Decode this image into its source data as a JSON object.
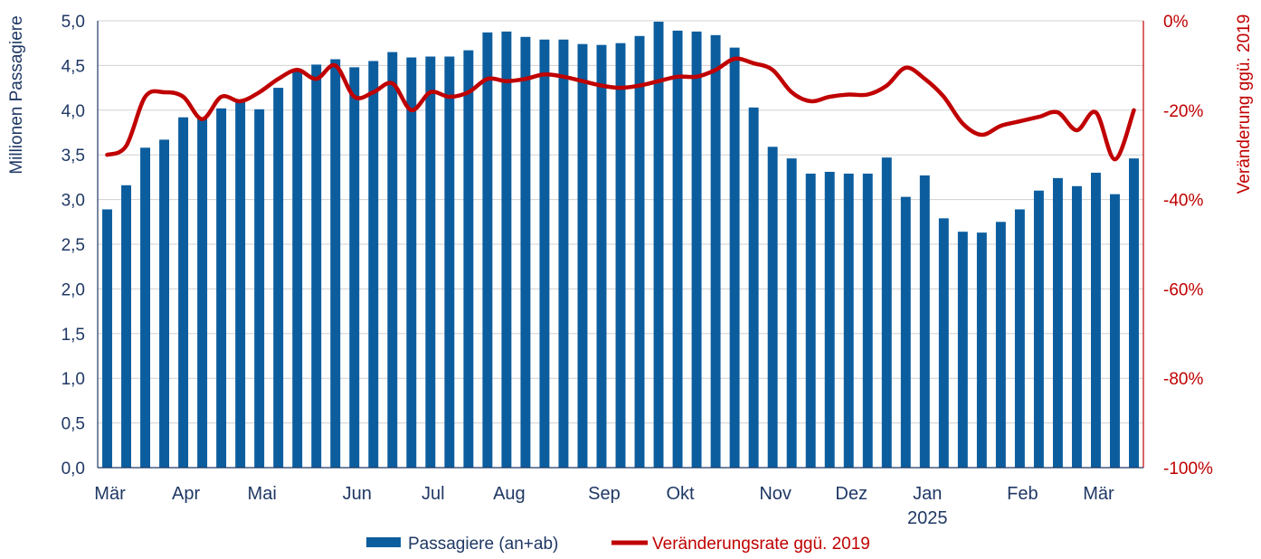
{
  "chart_data": {
    "type": "bar",
    "title": "",
    "ylabel": "Millionen Passagiere",
    "y2label": "Veränderung ggü. 2019",
    "ylim": [
      0,
      5
    ],
    "y2lim": [
      -100,
      0
    ],
    "yticks": [
      "0,0",
      "0,5",
      "1,0",
      "1,5",
      "2,0",
      "2,5",
      "3,0",
      "3,5",
      "4,0",
      "4,5",
      "5,0"
    ],
    "y2ticks": [
      "-100%",
      "-80%",
      "-60%",
      "-40%",
      "-20%",
      "0%"
    ],
    "grid": true,
    "legend_position": "bottom",
    "x_month_labels": [
      {
        "label": "Mär",
        "index": 0
      },
      {
        "label": "Apr",
        "index": 4
      },
      {
        "label": "Mai",
        "index": 8
      },
      {
        "label": "Jun",
        "index": 13
      },
      {
        "label": "Jul",
        "index": 17
      },
      {
        "label": "Aug",
        "index": 21
      },
      {
        "label": "Sep",
        "index": 26
      },
      {
        "label": "Okt",
        "index": 30
      },
      {
        "label": "Nov",
        "index": 35
      },
      {
        "label": "Dez",
        "index": 39
      },
      {
        "label": "Jan",
        "index": 43
      },
      {
        "label": "Feb",
        "index": 48
      },
      {
        "label": "Mär",
        "index": 52
      }
    ],
    "year_label": {
      "label": "2025",
      "index": 43
    },
    "series": [
      {
        "name": "Passagiere (an+ab)",
        "type": "bar",
        "color": "#0b5d9e",
        "values": [
          2.89,
          3.16,
          3.58,
          3.67,
          3.92,
          3.92,
          4.02,
          4.12,
          4.01,
          4.25,
          4.44,
          4.51,
          4.57,
          4.48,
          4.55,
          4.65,
          4.59,
          4.6,
          4.6,
          4.67,
          4.87,
          4.88,
          4.82,
          4.79,
          4.79,
          4.74,
          4.73,
          4.75,
          4.83,
          4.99,
          4.89,
          4.88,
          4.84,
          4.7,
          4.03,
          3.59,
          3.46,
          3.29,
          3.31,
          3.29,
          3.29,
          3.47,
          3.03,
          3.27,
          2.79,
          2.64,
          2.63,
          2.75,
          2.89,
          3.1,
          3.24,
          3.15,
          3.3,
          3.06,
          3.46
        ]
      },
      {
        "name": "Veränderungsrate ggü. 2019",
        "type": "line",
        "axis": "right",
        "color": "#c00000",
        "values": [
          -30,
          -28,
          -17,
          -16,
          -17,
          -22,
          -17,
          -18,
          -16,
          -13,
          -11,
          -13,
          -10,
          -17,
          -16,
          -14,
          -20,
          -16,
          -17,
          -16,
          -13,
          -13.5,
          -13,
          -12,
          -12.5,
          -13.5,
          -14.5,
          -15,
          -14.5,
          -13.5,
          -12.5,
          -12.5,
          -11,
          -8.5,
          -9.5,
          -11,
          -16,
          -18,
          -17,
          -16.5,
          -16.5,
          -14.5,
          -10.5,
          -13,
          -17,
          -23,
          -25.5,
          -23.5,
          -22.5,
          -21.5,
          -20.5,
          -24.5,
          -20.5,
          -31,
          -20
        ]
      }
    ]
  }
}
